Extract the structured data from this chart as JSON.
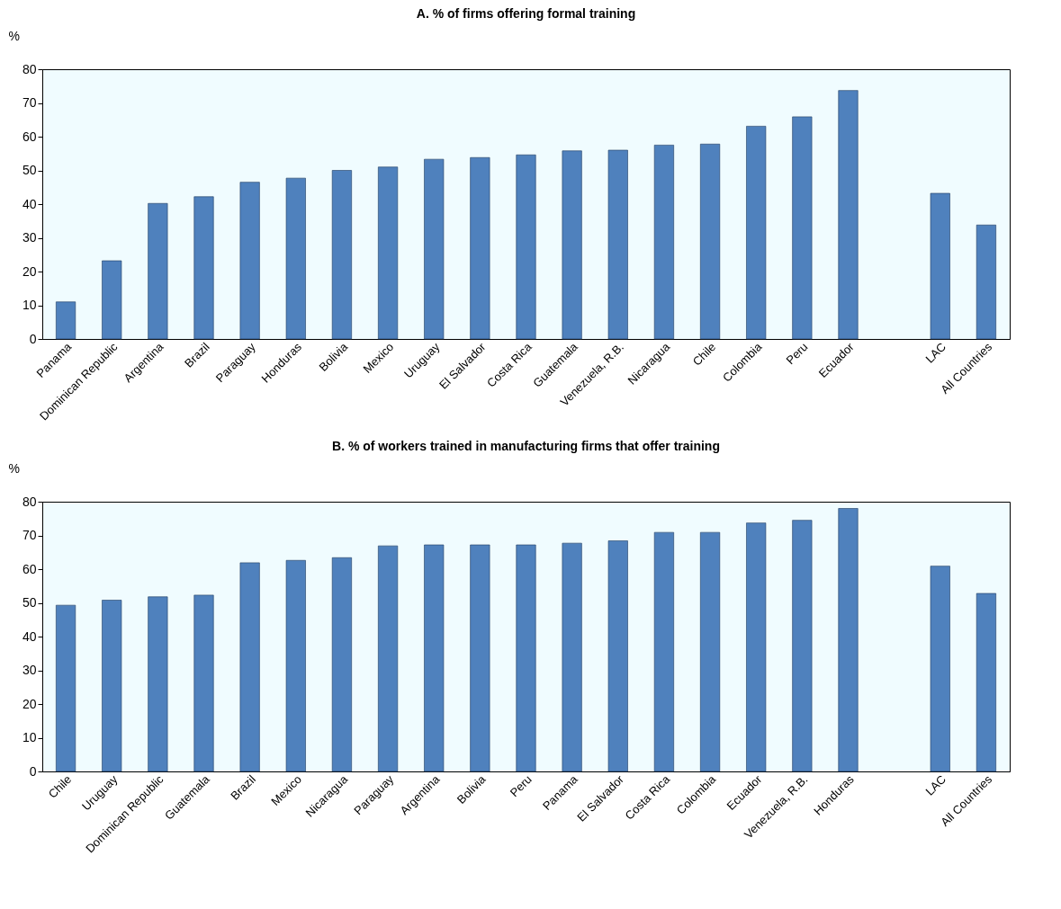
{
  "chart_data": [
    {
      "type": "bar",
      "title": "A. % of firms offering formal training",
      "ylabel": "%",
      "categories": [
        "Panama",
        "Dominican Republic",
        "Argentina",
        "Brazil",
        "Paraguay",
        "Honduras",
        "Bolivia",
        "Mexico",
        "Uruguay",
        "El Salvador",
        "Costa Rica",
        "Guatemala",
        "Venezuela, R.B.",
        "Nicaragua",
        "Chile",
        "Colombia",
        "Peru",
        "Ecuador",
        null,
        "LAC",
        "All Countries"
      ],
      "values": [
        11,
        23.2,
        40.2,
        42.2,
        46.5,
        47.7,
        50,
        51,
        53.3,
        53.8,
        54.6,
        55.8,
        56,
        57.5,
        57.8,
        63.1,
        65.9,
        73.7,
        null,
        43.2,
        33.8
      ],
      "color": "#4f81bd",
      "ylim": [
        0,
        80
      ],
      "yticks": [
        0,
        10,
        20,
        30,
        40,
        50,
        60,
        70,
        80
      ],
      "grid": false
    },
    {
      "type": "bar",
      "title": "B. % of workers trained in manufacturing firms that offer training",
      "ylabel": "%",
      "categories": [
        "Chile",
        "Uruguay",
        "Dominican Republic",
        "Guatemala",
        "Brazil",
        "Mexico",
        "Nicaragua",
        "Paraguay",
        "Argentina",
        "Bolivia",
        "Peru",
        "Panama",
        "El Salvador",
        "Costa Rica",
        "Colombia",
        "Ecuador",
        "Venezuela, R.B.",
        "Honduras",
        null,
        "LAC",
        "All Countries"
      ],
      "values": [
        49.3,
        50.8,
        51.8,
        52.3,
        61.9,
        62.6,
        63.4,
        66.9,
        67.2,
        67.2,
        67.2,
        67.7,
        68.4,
        70.9,
        70.9,
        73.7,
        74.5,
        78,
        null,
        60.9,
        52.8
      ],
      "color": "#4f81bd",
      "ylim": [
        0,
        80
      ],
      "yticks": [
        0,
        10,
        20,
        30,
        40,
        50,
        60,
        70,
        80
      ],
      "grid": false
    }
  ]
}
